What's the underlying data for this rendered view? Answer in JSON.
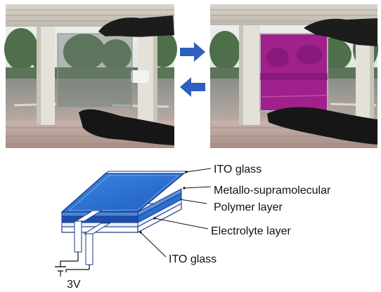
{
  "labels": {
    "ito_top": "ITO glass",
    "polymer_line1": "Metallo-supramolecular",
    "polymer_line2": "Polymer layer",
    "electrolyte": "Electrolyte layer",
    "ito_bottom": "ITO glass",
    "voltage": "3V"
  },
  "colors": {
    "panel_off": "#6f7e74",
    "panel_on": "#a0208c",
    "arrow": "#2f5fbf",
    "layer_blue": "#2b6fcf",
    "layer_blue_dark": "#1c4fa8",
    "outline": "#1a3a8a"
  },
  "icons": {
    "forward_arrow": "arrow-right-icon",
    "backward_arrow": "arrow-left-icon",
    "battery": "battery-icon"
  }
}
